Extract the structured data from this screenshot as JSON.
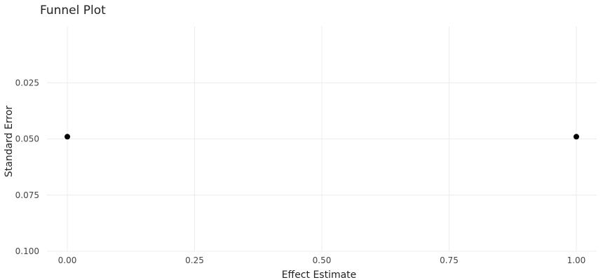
{
  "chart_data": {
    "type": "scatter",
    "title": "Funnel Plot",
    "xlabel": "Effect Estimate",
    "ylabel": "Standard Error",
    "xlim": [
      -0.04,
      1.04
    ],
    "ylim": [
      0.0,
      0.1
    ],
    "y_reversed": true,
    "x_ticks": [
      0,
      0.25,
      0.5,
      0.75,
      1
    ],
    "x_tick_labels": [
      "0.00",
      "0.25",
      "0.50",
      "0.75",
      "1.00"
    ],
    "y_ticks": [
      0.025,
      0.05,
      0.075,
      0.1
    ],
    "y_tick_labels": [
      "0.025",
      "0.050",
      "0.075",
      "0.100"
    ],
    "grid": true,
    "points": [
      {
        "x": 0.0,
        "y": 0.049
      },
      {
        "x": 1.0,
        "y": 0.049
      }
    ],
    "point_color": "#000000",
    "grid_color": "#ececec"
  }
}
